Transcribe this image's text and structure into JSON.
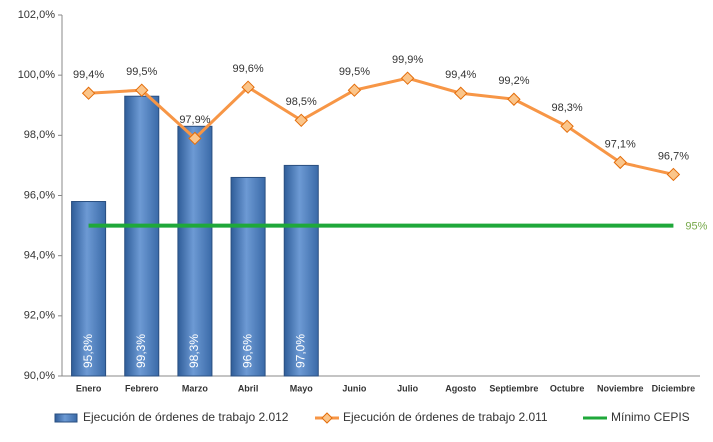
{
  "chart_data": {
    "type": "bar-line",
    "categories": [
      "Enero",
      "Febrero",
      "Marzo",
      "Abril",
      "Mayo",
      "Junio",
      "Julio",
      "Agosto",
      "Septiembre",
      "Octubre",
      "Noviembre",
      "Diciembre"
    ],
    "series": [
      {
        "name": "Ejecución de órdenes de trabajo 2.012",
        "type": "bar",
        "color": "#4f81bd",
        "values": [
          95.8,
          99.3,
          98.3,
          96.6,
          97.0,
          null,
          null,
          null,
          null,
          null,
          null,
          null
        ],
        "value_labels": [
          "95,8%",
          "99,3%",
          "98,3%",
          "96,6%",
          "97,0%",
          null,
          null,
          null,
          null,
          null,
          null,
          null
        ]
      },
      {
        "name": "Ejecución de órdenes de trabajo 2.011",
        "type": "line",
        "color": "#f79646",
        "values": [
          99.4,
          99.5,
          97.9,
          99.6,
          98.5,
          99.5,
          99.9,
          99.4,
          99.2,
          98.3,
          97.1,
          96.7
        ],
        "value_labels": [
          "99,4%",
          "99,5%",
          "97,9%",
          "99,6%",
          "98,5%",
          "99,5%",
          "99,9%",
          "99,4%",
          "99,2%",
          "98,3%",
          "97,1%",
          "96,7%"
        ]
      },
      {
        "name": "Mínimo CEPIS",
        "type": "line",
        "color": "#1fa83a",
        "values": [
          95,
          95,
          95,
          95,
          95,
          95,
          95,
          95,
          95,
          95,
          95,
          95
        ],
        "value_labels": [
          null,
          null,
          null,
          null,
          null,
          null,
          null,
          null,
          null,
          null,
          null,
          "95%"
        ]
      }
    ],
    "ylim": [
      90,
      102
    ],
    "yticks": [
      {
        "value": 90,
        "label": "90,0%"
      },
      {
        "value": 92,
        "label": "92,0%"
      },
      {
        "value": 94,
        "label": "94,0%"
      },
      {
        "value": 96,
        "label": "96,0%"
      },
      {
        "value": 98,
        "label": "98,0%"
      },
      {
        "value": 100,
        "label": "100,0%"
      },
      {
        "value": 102,
        "label": "102,0%"
      }
    ],
    "legend": "bottom"
  }
}
